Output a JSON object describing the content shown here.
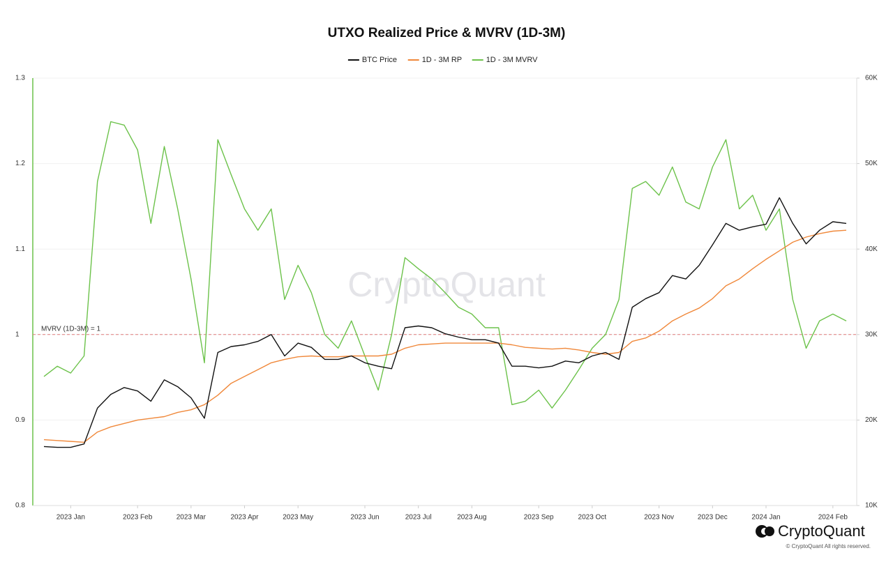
{
  "chart_data": {
    "type": "line",
    "title": "UTXO Realized Price & MVRV (1D-3M)",
    "watermark": "CryptoQuant",
    "logo_text": "CryptoQuant",
    "copyright": "© CryptoQuant All rights reserved.",
    "legend": "top",
    "grid": true,
    "categories": [
      null,
      null,
      "2023 Jan",
      null,
      null,
      null,
      null,
      "2023 Feb",
      null,
      null,
      null,
      "2023 Mar",
      null,
      null,
      null,
      "2023 Apr",
      null,
      null,
      null,
      "2023 May",
      null,
      null,
      null,
      null,
      "2023 Jun",
      null,
      null,
      null,
      "2023 Jul",
      null,
      null,
      null,
      "2023 Aug",
      null,
      null,
      null,
      null,
      "2023 Sep",
      null,
      null,
      null,
      "2023 Oct",
      null,
      null,
      null,
      null,
      "2023 Nov",
      null,
      null,
      null,
      "2023 Dec",
      null,
      null,
      null,
      "2024 Jan",
      null,
      null,
      null,
      null,
      "2024 Feb",
      null
    ],
    "ylim": [
      0.8,
      1.3
    ],
    "yticks": [
      0.8,
      0.9,
      1,
      1.1,
      1.2,
      1.3
    ],
    "y2lim": [
      10000,
      60000
    ],
    "y2ticks": [
      {
        "value": 10000,
        "label": "10K"
      },
      {
        "value": 20000,
        "label": "20K"
      },
      {
        "value": 30000,
        "label": "30K"
      },
      {
        "value": 40000,
        "label": "40K"
      },
      {
        "value": 50000,
        "label": "50K"
      },
      {
        "value": 60000,
        "label": "60K"
      }
    ],
    "reference_line": {
      "value": 1,
      "label": "MVRV (1D-3M) = 1",
      "color": "#e07a7a"
    },
    "y_axis_color": "#6cc24a",
    "series": [
      {
        "name": "BTC Price",
        "color": "#111111",
        "axis": "y2",
        "values": [
          16900,
          16800,
          16800,
          17200,
          21400,
          23000,
          23800,
          23400,
          22200,
          24700,
          23900,
          22600,
          20200,
          27900,
          28600,
          28800,
          29200,
          30000,
          27500,
          29000,
          28500,
          27100,
          27100,
          27500,
          26700,
          26300,
          26000,
          30800,
          31000,
          30800,
          30100,
          29700,
          29400,
          29400,
          29000,
          26300,
          26300,
          26100,
          26300,
          26900,
          26700,
          27500,
          27900,
          27100,
          33200,
          34200,
          34900,
          36900,
          36500,
          38100,
          40500,
          43000,
          42200,
          42600,
          42900,
          46000,
          43000,
          40600,
          42200,
          43200,
          43000
        ]
      },
      {
        "name": "1D - 3M RP",
        "color": "#f0883a",
        "axis": "y2",
        "values": [
          17700,
          17600,
          17500,
          17400,
          18600,
          19200,
          19600,
          20000,
          20200,
          20400,
          20900,
          21200,
          21800,
          22900,
          24300,
          25100,
          25900,
          26700,
          27100,
          27400,
          27500,
          27400,
          27400,
          27500,
          27500,
          27500,
          27700,
          28400,
          28800,
          28900,
          29000,
          29000,
          29000,
          29000,
          29000,
          28800,
          28500,
          28400,
          28300,
          28400,
          28200,
          27900,
          27700,
          27900,
          29200,
          29600,
          30400,
          31600,
          32400,
          33100,
          34200,
          35700,
          36500,
          37700,
          38800,
          39800,
          40800,
          41400,
          41800,
          42100,
          42200
        ]
      },
      {
        "name": "1D - 3M MVRV",
        "color": "#6cc24a",
        "axis": "y",
        "values": [
          0.951,
          0.963,
          0.955,
          0.975,
          1.179,
          1.249,
          1.245,
          1.216,
          1.13,
          1.22,
          1.147,
          1.065,
          0.967,
          1.228,
          1.187,
          1.147,
          1.122,
          1.147,
          1.041,
          1.081,
          1.049,
          1.0,
          0.984,
          1.016,
          0.975,
          0.935,
          1.0,
          1.09,
          1.077,
          1.065,
          1.049,
          1.032,
          1.024,
          1.008,
          1.008,
          0.918,
          0.922,
          0.935,
          0.914,
          0.935,
          0.959,
          0.984,
          1.0,
          1.041,
          1.171,
          1.179,
          1.163,
          1.196,
          1.155,
          1.147,
          1.196,
          1.228,
          1.147,
          1.163,
          1.122,
          1.147,
          1.041,
          0.984,
          1.016,
          1.024,
          1.016
        ]
      }
    ]
  }
}
